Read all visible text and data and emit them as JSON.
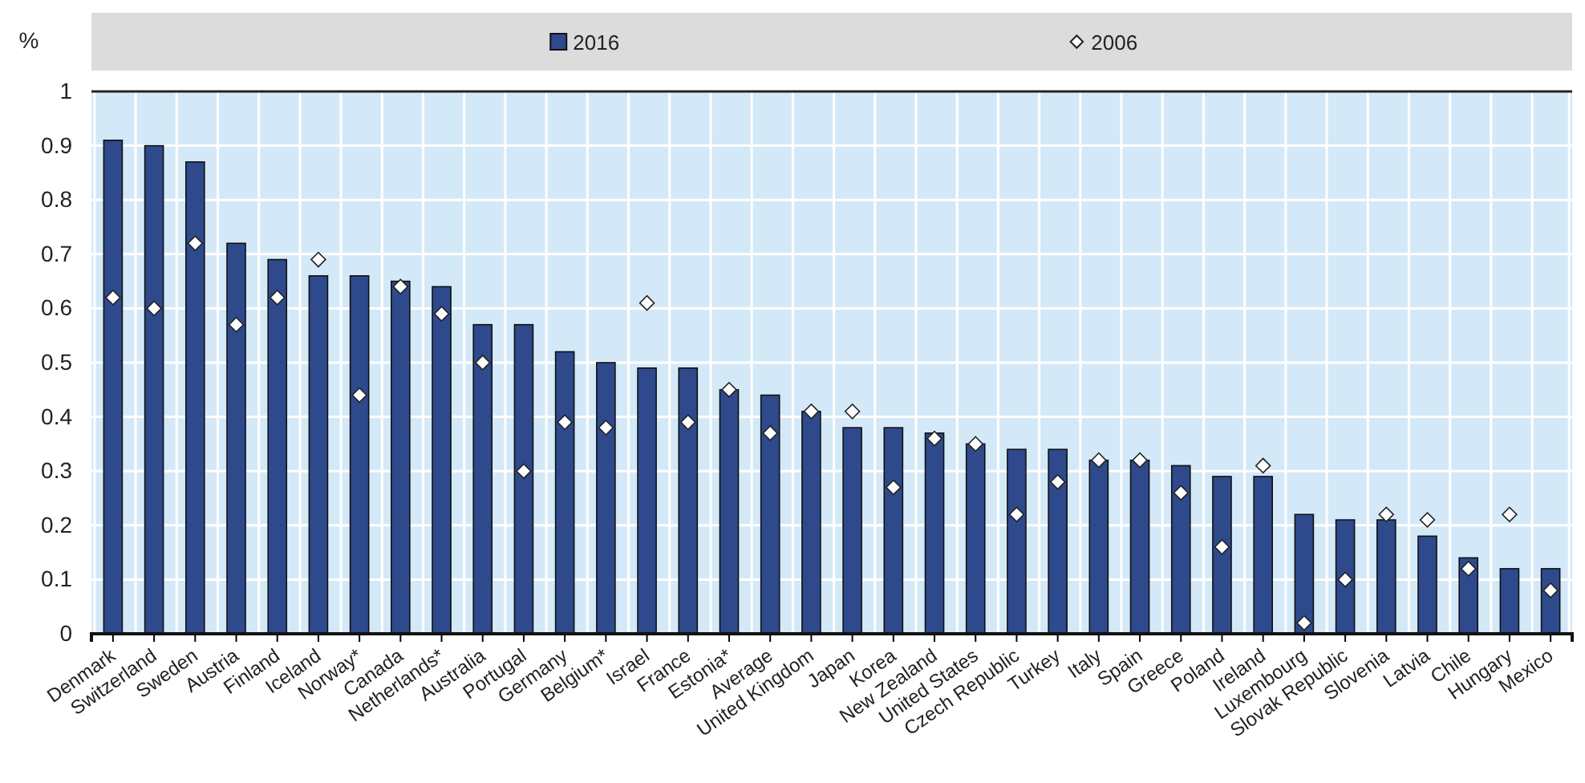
{
  "chart_data": {
    "type": "bar",
    "ylabel": "%",
    "categories": [
      "Denmark",
      "Switzerland",
      "Sweden",
      "Austria",
      "Finland",
      "Iceland",
      "Norway*",
      "Canada",
      "Netherlands*",
      "Australia",
      "Portugal",
      "Germany",
      "Belgium*",
      "Israel",
      "France",
      "Estonia*",
      "Average",
      "United Kingdom",
      "Japan",
      "Korea",
      "New Zealand",
      "United States",
      "Czech Republic",
      "Turkey",
      "Italy",
      "Spain",
      "Greece",
      "Poland",
      "Ireland",
      "Luxembourg",
      "Slovak Republic",
      "Slovenia",
      "Latvia",
      "Chile",
      "Hungary",
      "Mexico"
    ],
    "series": [
      {
        "name": "2016",
        "type": "bar",
        "color": "#2e4a8c",
        "values": [
          0.91,
          0.9,
          0.87,
          0.72,
          0.69,
          0.66,
          0.66,
          0.65,
          0.64,
          0.57,
          0.57,
          0.52,
          0.5,
          0.49,
          0.49,
          0.45,
          0.44,
          0.41,
          0.38,
          0.38,
          0.37,
          0.35,
          0.34,
          0.34,
          0.32,
          0.32,
          0.31,
          0.29,
          0.29,
          0.22,
          0.21,
          0.21,
          0.18,
          0.14,
          0.12,
          0.12
        ]
      },
      {
        "name": "2006",
        "type": "scatter",
        "marker": "diamond",
        "color": "#ffffff",
        "values": [
          0.62,
          0.6,
          0.72,
          0.57,
          0.62,
          0.69,
          0.44,
          0.64,
          0.59,
          0.5,
          0.3,
          0.39,
          0.38,
          0.61,
          0.39,
          0.45,
          0.37,
          0.41,
          0.41,
          0.27,
          0.36,
          0.35,
          0.22,
          0.28,
          0.32,
          0.32,
          0.26,
          0.16,
          0.31,
          0.02,
          0.1,
          0.22,
          0.21,
          0.12,
          0.22,
          0.08
        ]
      }
    ],
    "ylim": [
      0,
      1
    ],
    "yticks": [
      0,
      0.1,
      0.2,
      0.3,
      0.4,
      0.5,
      0.6,
      0.7,
      0.8,
      0.9,
      1
    ],
    "grid": true,
    "legend": "top"
  }
}
